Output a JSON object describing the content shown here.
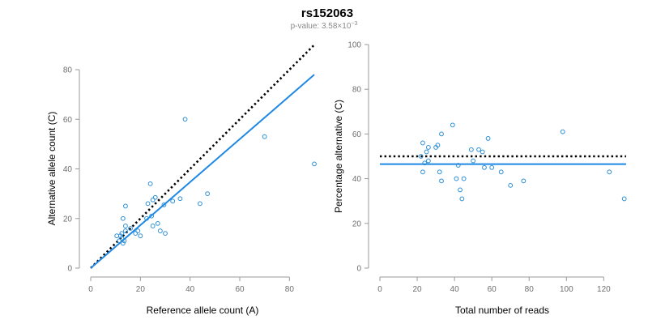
{
  "title": "rs152063",
  "subtitle_prefix": "p-value: 3.58×10",
  "subtitle_exponent": "−3",
  "colors": {
    "points": "#2b8fd6",
    "fit_line": "#1e88e5",
    "reference_line": "#000000",
    "axis": "#9a9a9a",
    "tick_text": "#6e6e6e"
  },
  "chart_data": [
    {
      "type": "scatter",
      "xlabel": "Reference allele count (A)",
      "ylabel": "Alternative allele count (C)",
      "xlim": [
        0,
        90
      ],
      "ylim": [
        0,
        80
      ],
      "xticks": [
        0,
        20,
        40,
        60,
        80
      ],
      "yticks": [
        0,
        20,
        40,
        60,
        80
      ],
      "tick_labels_x": [
        "0",
        "20",
        "40",
        "60",
        "80"
      ],
      "tick_labels_y": [
        "0",
        "20",
        "40",
        "60",
        "80"
      ],
      "grid": false,
      "points": [
        {
          "x": 10.5,
          "y": 13
        },
        {
          "x": 11.5,
          "y": 11
        },
        {
          "x": 12,
          "y": 13
        },
        {
          "x": 12.5,
          "y": 12
        },
        {
          "x": 12.5,
          "y": 14
        },
        {
          "x": 13,
          "y": 10
        },
        {
          "x": 13,
          "y": 20
        },
        {
          "x": 13.5,
          "y": 11
        },
        {
          "x": 14,
          "y": 15
        },
        {
          "x": 14,
          "y": 17
        },
        {
          "x": 14,
          "y": 25
        },
        {
          "x": 16,
          "y": 16
        },
        {
          "x": 18,
          "y": 14
        },
        {
          "x": 19,
          "y": 15
        },
        {
          "x": 20,
          "y": 13
        },
        {
          "x": 22.5,
          "y": 20
        },
        {
          "x": 23,
          "y": 26
        },
        {
          "x": 24,
          "y": 34
        },
        {
          "x": 24.5,
          "y": 21
        },
        {
          "x": 25,
          "y": 17
        },
        {
          "x": 25,
          "y": 27.5
        },
        {
          "x": 26,
          "y": 28.5
        },
        {
          "x": 27,
          "y": 18
        },
        {
          "x": 28,
          "y": 15
        },
        {
          "x": 29.5,
          "y": 25.5
        },
        {
          "x": 30,
          "y": 14
        },
        {
          "x": 33,
          "y": 27
        },
        {
          "x": 36,
          "y": 28
        },
        {
          "x": 38,
          "y": 60
        },
        {
          "x": 44,
          "y": 26
        },
        {
          "x": 47,
          "y": 30
        },
        {
          "x": 70,
          "y": 53
        },
        {
          "x": 90,
          "y": 42
        }
      ],
      "fit_line": {
        "x": [
          0,
          90
        ],
        "y": [
          0,
          78
        ]
      },
      "reference_line": {
        "x": [
          0,
          90
        ],
        "y": [
          0,
          90
        ]
      }
    },
    {
      "type": "scatter",
      "xlabel": "Total number of reads",
      "ylabel": "Percentage alternative (C)",
      "xlim": [
        0,
        132
      ],
      "ylim": [
        0,
        100
      ],
      "xticks": [
        0,
        20,
        40,
        60,
        80,
        100,
        120
      ],
      "yticks": [
        0,
        20,
        40,
        60,
        80,
        100
      ],
      "tick_labels_x": [
        "0",
        "20",
        "40",
        "60",
        "80",
        "100",
        "120"
      ],
      "tick_labels_y": [
        "0",
        "20",
        "40",
        "60",
        "80",
        "100"
      ],
      "grid": false,
      "points": [
        {
          "x": 22,
          "y": 50
        },
        {
          "x": 23,
          "y": 56
        },
        {
          "x": 23,
          "y": 43
        },
        {
          "x": 24,
          "y": 47
        },
        {
          "x": 25,
          "y": 52
        },
        {
          "x": 26,
          "y": 54
        },
        {
          "x": 26,
          "y": 48
        },
        {
          "x": 30,
          "y": 54
        },
        {
          "x": 31,
          "y": 55
        },
        {
          "x": 32,
          "y": 43
        },
        {
          "x": 33,
          "y": 39
        },
        {
          "x": 33,
          "y": 60
        },
        {
          "x": 39,
          "y": 64
        },
        {
          "x": 41,
          "y": 40
        },
        {
          "x": 42,
          "y": 46
        },
        {
          "x": 43,
          "y": 35
        },
        {
          "x": 44,
          "y": 31
        },
        {
          "x": 45,
          "y": 40
        },
        {
          "x": 49,
          "y": 53
        },
        {
          "x": 50,
          "y": 48
        },
        {
          "x": 53,
          "y": 53
        },
        {
          "x": 55,
          "y": 52
        },
        {
          "x": 56,
          "y": 45
        },
        {
          "x": 58,
          "y": 58
        },
        {
          "x": 60,
          "y": 45
        },
        {
          "x": 65,
          "y": 43
        },
        {
          "x": 70,
          "y": 37
        },
        {
          "x": 77,
          "y": 39
        },
        {
          "x": 98,
          "y": 61
        },
        {
          "x": 123,
          "y": 43
        },
        {
          "x": 131,
          "y": 31
        }
      ],
      "fit_line": {
        "x": [
          0,
          132
        ],
        "y": [
          46.5,
          46.5
        ]
      },
      "reference_line": {
        "x": [
          0,
          132
        ],
        "y": [
          50,
          50
        ]
      }
    }
  ]
}
